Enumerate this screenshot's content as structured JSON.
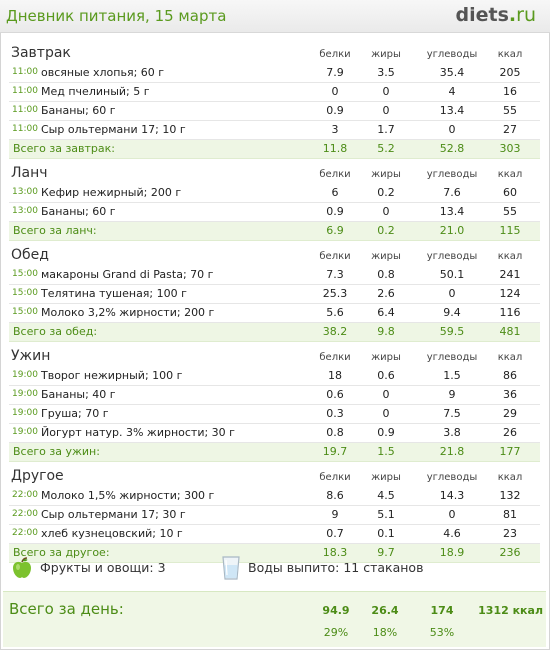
{
  "header": {
    "title": "Дневник питания, 15 марта",
    "logo_name": "diets",
    "logo_dot": ".",
    "logo_tld": "ru"
  },
  "columns": {
    "protein": "белки",
    "fat": "жиры",
    "carbs": "углеводы",
    "kcal": "ккал"
  },
  "meals": [
    {
      "name": "Завтрак",
      "items": [
        {
          "time": "11:00",
          "food": "овсяные хлопья; 60 г",
          "protein": "7.9",
          "fat": "3.5",
          "carbs": "35.4",
          "kcal": "205"
        },
        {
          "time": "11:00",
          "food": "Мед пчелиный; 5 г",
          "protein": "0",
          "fat": "0",
          "carbs": "4",
          "kcal": "16"
        },
        {
          "time": "11:00",
          "food": "Бананы; 60 г",
          "protein": "0.9",
          "fat": "0",
          "carbs": "13.4",
          "kcal": "55"
        },
        {
          "time": "11:00",
          "food": "Сыр ольтермани 17; 10 г",
          "protein": "3",
          "fat": "1.7",
          "carbs": "0",
          "kcal": "27"
        }
      ],
      "total": {
        "label": "Всего за завтрак:",
        "protein": "11.8",
        "fat": "5.2",
        "carbs": "52.8",
        "kcal": "303"
      }
    },
    {
      "name": "Ланч",
      "items": [
        {
          "time": "13:00",
          "food": "Кефир нежирный; 200 г",
          "protein": "6",
          "fat": "0.2",
          "carbs": "7.6",
          "kcal": "60"
        },
        {
          "time": "13:00",
          "food": "Бананы; 60 г",
          "protein": "0.9",
          "fat": "0",
          "carbs": "13.4",
          "kcal": "55"
        }
      ],
      "total": {
        "label": "Всего за ланч:",
        "protein": "6.9",
        "fat": "0.2",
        "carbs": "21.0",
        "kcal": "115"
      }
    },
    {
      "name": "Обед",
      "items": [
        {
          "time": "15:00",
          "food": "макароны Grand di Pasta; 70 г",
          "protein": "7.3",
          "fat": "0.8",
          "carbs": "50.1",
          "kcal": "241"
        },
        {
          "time": "15:00",
          "food": "Телятина тушеная; 100 г",
          "protein": "25.3",
          "fat": "2.6",
          "carbs": "0",
          "kcal": "124"
        },
        {
          "time": "15:00",
          "food": "Молоко 3,2% жирности; 200 г",
          "protein": "5.6",
          "fat": "6.4",
          "carbs": "9.4",
          "kcal": "116"
        }
      ],
      "total": {
        "label": "Всего за обед:",
        "protein": "38.2",
        "fat": "9.8",
        "carbs": "59.5",
        "kcal": "481"
      }
    },
    {
      "name": "Ужин",
      "items": [
        {
          "time": "19:00",
          "food": "Творог нежирный; 100 г",
          "protein": "18",
          "fat": "0.6",
          "carbs": "1.5",
          "kcal": "86"
        },
        {
          "time": "19:00",
          "food": "Бананы; 40 г",
          "protein": "0.6",
          "fat": "0",
          "carbs": "9",
          "kcal": "36"
        },
        {
          "time": "19:00",
          "food": "Груша; 70 г",
          "protein": "0.3",
          "fat": "0",
          "carbs": "7.5",
          "kcal": "29"
        },
        {
          "time": "19:00",
          "food": "Йогурт натур. 3% жирности; 30 г",
          "protein": "0.8",
          "fat": "0.9",
          "carbs": "3.8",
          "kcal": "26"
        }
      ],
      "total": {
        "label": "Всего за ужин:",
        "protein": "19.7",
        "fat": "1.5",
        "carbs": "21.8",
        "kcal": "177"
      }
    },
    {
      "name": "Другое",
      "items": [
        {
          "time": "22:00",
          "food": "Молоко 1,5% жирности; 300 г",
          "protein": "8.6",
          "fat": "4.5",
          "carbs": "14.3",
          "kcal": "132"
        },
        {
          "time": "22:00",
          "food": "Сыр ольтермани 17; 30 г",
          "protein": "9",
          "fat": "5.1",
          "carbs": "0",
          "kcal": "81"
        },
        {
          "time": "22:00",
          "food": "хлеб кузнецовский; 10 г",
          "protein": "0.7",
          "fat": "0.1",
          "carbs": "4.6",
          "kcal": "23"
        }
      ],
      "total": {
        "label": "Всего за другое:",
        "protein": "18.3",
        "fat": "9.7",
        "carbs": "18.9",
        "kcal": "236"
      }
    }
  ],
  "extras": {
    "fruits_icon": "green-apple-icon",
    "fruits_label": "Фрукты и овощи: 3",
    "water_icon": "glass-of-water-icon",
    "water_label": "Воды выпито: 11 стаканов"
  },
  "day_total": {
    "label": "Всего за день:",
    "protein": "94.9",
    "fat": "26.4",
    "carbs": "174",
    "kcal": "1312 ккал",
    "protein_pct": "29%",
    "fat_pct": "18%",
    "carbs_pct": "53%"
  },
  "colors": {
    "accent_green": "#5a9a1e",
    "total_row_bg": "#eef6e4",
    "day_box_bg": "#f0f7e6"
  }
}
